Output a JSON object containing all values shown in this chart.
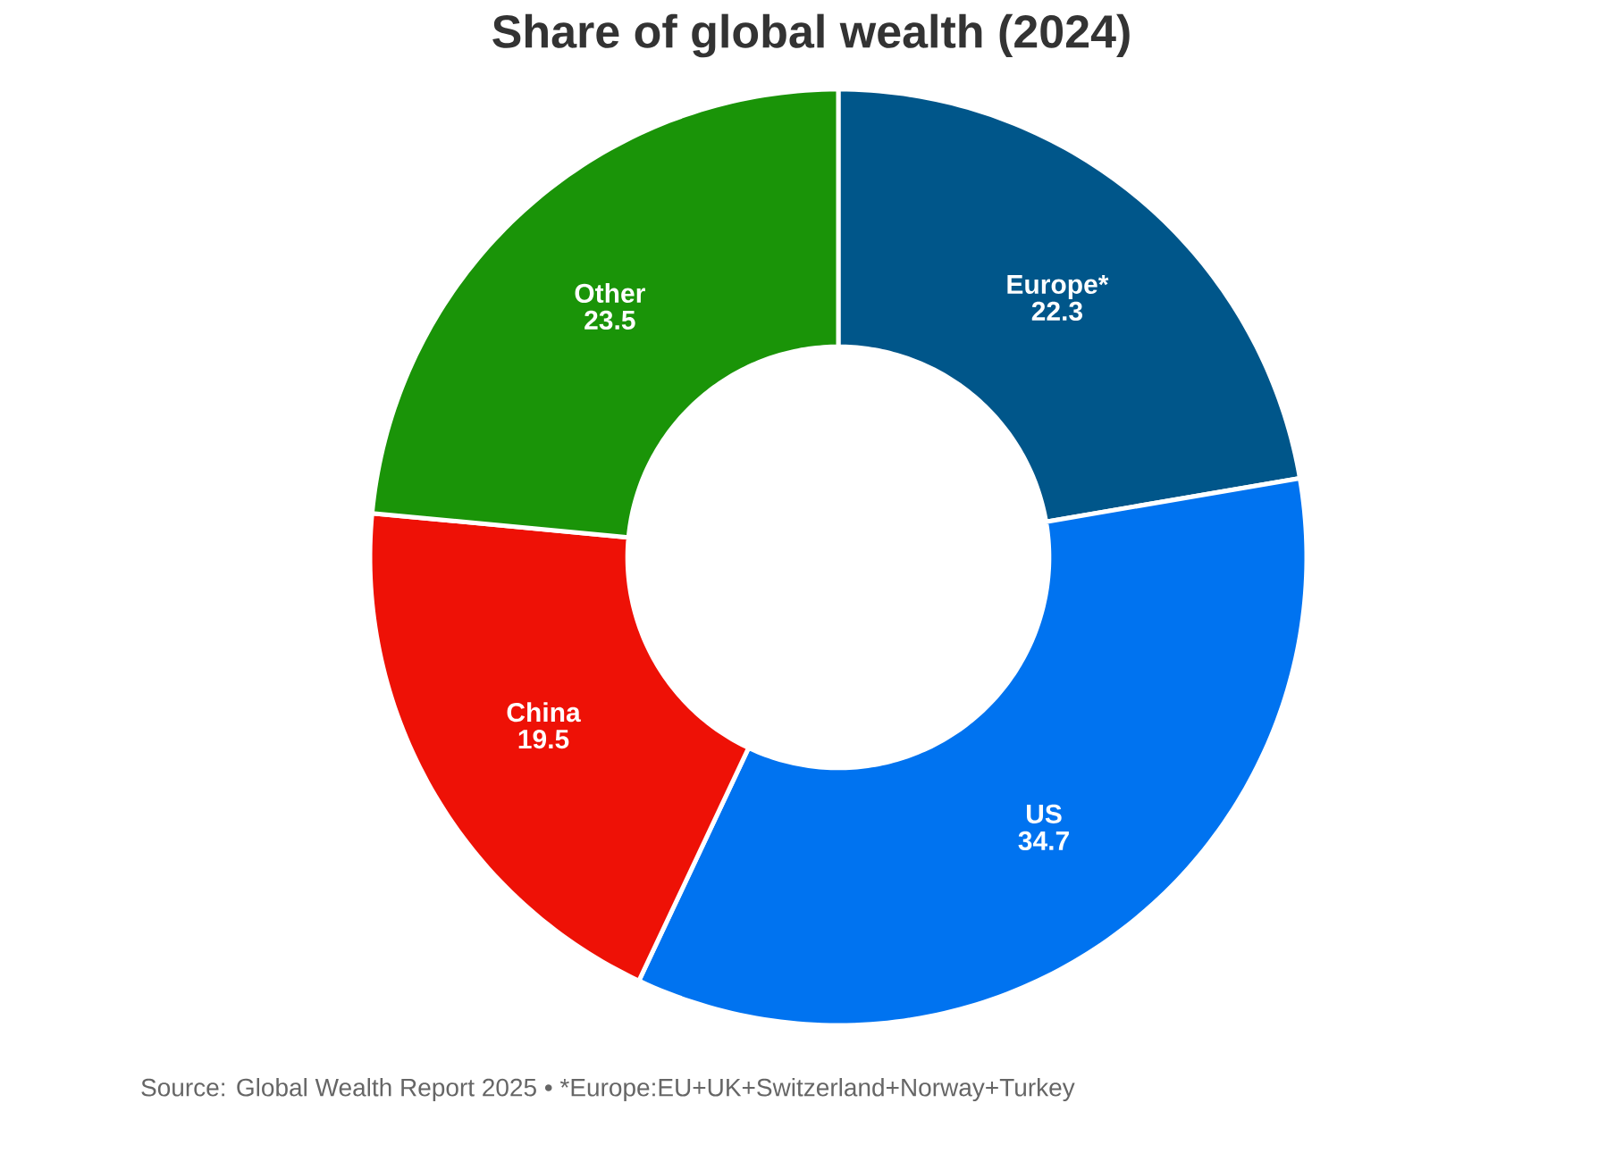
{
  "chart_data": {
    "type": "donut",
    "title": "Share of global wealth (2024)",
    "categories": [
      "Europe*",
      "US",
      "China",
      "Other"
    ],
    "values": [
      22.3,
      34.7,
      19.5,
      23.5
    ],
    "colors": [
      "#00568a",
      "#0073f0",
      "#ee1106",
      "#1a9408"
    ],
    "data_labels": true,
    "annotations": [
      "Source: Global Wealth Report 2025 • *Europe:EU+UK+Switzerland+Norway+Turkey"
    ]
  }
}
